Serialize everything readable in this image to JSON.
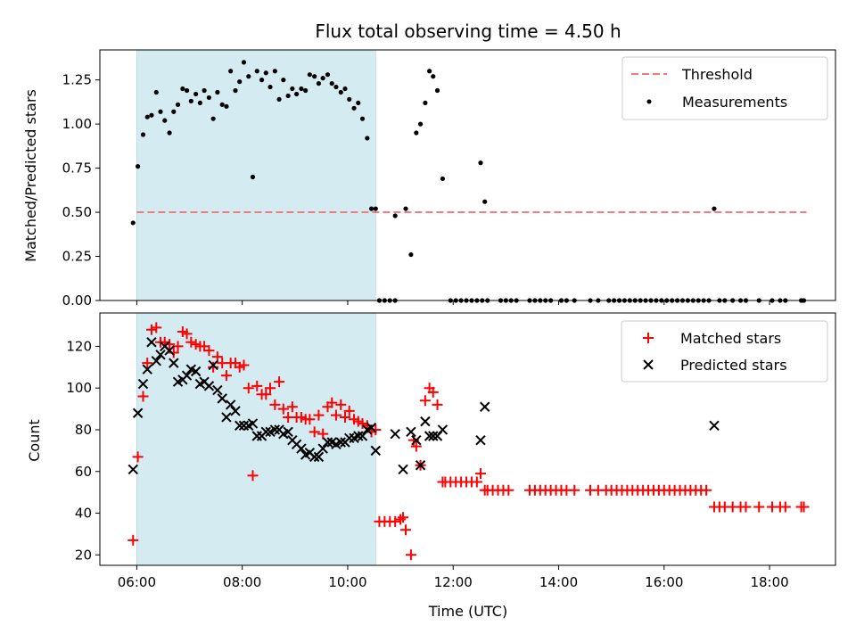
{
  "chart_data": [
    {
      "type": "scatter",
      "title": "Flux total observing time = 4.50 h",
      "xlabel": "",
      "ylabel": "Matched/Predicted stars",
      "ylim": [
        0.0,
        1.42
      ],
      "yticks": [
        "0.00",
        "0.25",
        "0.50",
        "0.75",
        "1.00",
        "1.25"
      ],
      "xlim_hours": [
        5.3,
        19.25
      ],
      "shaded_span_hours": [
        6.0,
        10.53
      ],
      "shade_color": "#d3ebf1",
      "legend_position": "upper right",
      "threshold": {
        "name": "Threshold",
        "y": 0.5,
        "x_range_hours": [
          6.0,
          18.7
        ],
        "color": "#f47a7a"
      },
      "series": [
        {
          "name": "Measurements",
          "color": "#000000",
          "marker": "dot",
          "x_hours": [
            5.93,
            6.02,
            6.12,
            6.2,
            6.28,
            6.37,
            6.45,
            6.53,
            6.62,
            6.7,
            6.78,
            6.87,
            6.95,
            7.03,
            7.12,
            7.2,
            7.28,
            7.37,
            7.45,
            7.53,
            7.62,
            7.7,
            7.78,
            7.87,
            7.95,
            8.03,
            8.12,
            8.2,
            8.28,
            8.37,
            8.45,
            8.53,
            8.62,
            8.7,
            8.78,
            8.87,
            8.95,
            9.03,
            9.12,
            9.2,
            9.28,
            9.37,
            9.45,
            9.53,
            9.62,
            9.7,
            9.78,
            9.87,
            9.95,
            10.03,
            10.12,
            10.2,
            10.28,
            10.37,
            10.45,
            10.53,
            10.9,
            11.1,
            11.2,
            11.3,
            11.38,
            11.47,
            11.55,
            11.62,
            11.7,
            11.8,
            12.52,
            12.6,
            16.95
          ],
          "y": [
            0.44,
            0.76,
            0.94,
            1.04,
            1.05,
            1.18,
            1.07,
            1.02,
            0.95,
            1.07,
            1.11,
            1.2,
            1.19,
            1.13,
            1.17,
            1.12,
            1.19,
            1.15,
            1.03,
            1.18,
            1.11,
            1.1,
            1.3,
            1.19,
            1.24,
            1.35,
            1.27,
            0.7,
            1.3,
            1.25,
            1.29,
            1.21,
            1.3,
            1.14,
            1.25,
            1.16,
            1.2,
            1.17,
            1.2,
            1.19,
            1.28,
            1.27,
            1.23,
            1.26,
            1.28,
            1.23,
            1.21,
            1.18,
            1.2,
            1.14,
            1.09,
            1.12,
            1.03,
            0.92,
            0.52,
            0.52,
            0.48,
            0.52,
            0.26,
            0.95,
            1.0,
            1.12,
            1.3,
            1.27,
            1.19,
            0.69,
            0.78,
            0.56,
            0.52
          ],
          "zeros_x_hours": [
            10.6,
            10.7,
            10.8,
            10.9,
            11.95,
            12.05,
            12.15,
            12.25,
            12.35,
            12.45,
            12.55,
            12.65,
            12.9,
            13.0,
            13.1,
            13.2,
            13.45,
            13.55,
            13.65,
            13.75,
            13.85,
            14.05,
            14.15,
            14.3,
            14.6,
            14.75,
            14.95,
            15.05,
            15.15,
            15.25,
            15.35,
            15.45,
            15.55,
            15.65,
            15.75,
            15.85,
            15.95,
            16.05,
            16.15,
            16.25,
            16.35,
            16.45,
            16.55,
            16.65,
            16.75,
            16.85,
            17.05,
            17.15,
            17.3,
            17.45,
            17.55,
            17.8,
            18.05,
            18.2,
            18.3,
            18.6,
            18.65
          ]
        }
      ]
    },
    {
      "type": "scatter",
      "title": "",
      "xlabel": "Time (UTC)",
      "ylabel": "Count",
      "ylim": [
        15,
        136
      ],
      "yticks": [
        20,
        40,
        60,
        80,
        100,
        120
      ],
      "xlim_hours": [
        5.3,
        19.25
      ],
      "xticks": [
        {
          "label": "06:00",
          "hours": 6
        },
        {
          "label": "08:00",
          "hours": 8
        },
        {
          "label": "10:00",
          "hours": 10
        },
        {
          "label": "12:00",
          "hours": 12
        },
        {
          "label": "14:00",
          "hours": 14
        },
        {
          "label": "16:00",
          "hours": 16
        },
        {
          "label": "18:00",
          "hours": 18
        }
      ],
      "shaded_span_hours": [
        6.0,
        10.53
      ],
      "legend_position": "upper right",
      "series": [
        {
          "name": "Matched stars",
          "color": "#ff0000",
          "marker": "plus",
          "x_hours": [
            5.93,
            6.02,
            6.12,
            6.2,
            6.28,
            6.37,
            6.45,
            6.53,
            6.62,
            6.7,
            6.78,
            6.87,
            6.95,
            7.03,
            7.12,
            7.2,
            7.28,
            7.37,
            7.45,
            7.53,
            7.62,
            7.7,
            7.78,
            7.87,
            7.95,
            8.03,
            8.12,
            8.2,
            8.28,
            8.37,
            8.45,
            8.53,
            8.62,
            8.7,
            8.78,
            8.87,
            8.95,
            9.03,
            9.12,
            9.2,
            9.28,
            9.37,
            9.45,
            9.53,
            9.62,
            9.7,
            9.78,
            9.87,
            9.95,
            10.03,
            10.12,
            10.2,
            10.28,
            10.37,
            10.45,
            10.53,
            10.6,
            10.7,
            10.8,
            10.9,
            11.0,
            11.05,
            11.1,
            11.2,
            11.25,
            11.3,
            11.38,
            11.47,
            11.55,
            11.62,
            11.7,
            11.8,
            11.85,
            11.95,
            12.05,
            12.15,
            12.25,
            12.35,
            12.45,
            12.52,
            12.6,
            12.65,
            12.75,
            12.85,
            12.95,
            13.05,
            13.45,
            13.55,
            13.65,
            13.75,
            13.85,
            13.95,
            14.05,
            14.15,
            14.3,
            14.6,
            14.75,
            14.9,
            15.0,
            15.1,
            15.2,
            15.3,
            15.4,
            15.5,
            15.6,
            15.7,
            15.8,
            15.9,
            16.0,
            16.1,
            16.2,
            16.3,
            16.4,
            16.5,
            16.6,
            16.7,
            16.8,
            16.95,
            17.05,
            17.15,
            17.3,
            17.45,
            17.55,
            17.8,
            18.05,
            18.2,
            18.3,
            18.6,
            18.65
          ],
          "y": [
            27,
            67,
            96,
            112,
            128,
            129,
            122,
            122,
            121,
            117,
            120,
            127,
            126,
            122,
            121,
            120,
            120,
            118,
            110,
            115,
            112,
            106,
            112,
            112,
            110,
            111,
            100,
            58,
            101,
            97,
            97,
            100,
            92,
            103,
            90,
            86,
            91,
            86,
            86,
            85,
            85,
            79,
            87,
            78,
            91,
            93,
            87,
            92,
            86,
            89,
            85,
            84,
            83,
            82,
            79,
            80,
            36,
            36,
            36,
            36,
            37,
            38,
            32,
            20,
            75,
            72,
            63,
            94,
            100,
            98,
            92,
            55,
            55,
            55,
            55,
            55,
            55,
            55,
            55,
            59,
            51,
            51,
            51,
            51,
            51,
            51,
            51,
            51,
            51,
            51,
            51,
            51,
            51,
            51,
            51,
            51,
            51,
            51,
            51,
            51,
            51,
            51,
            51,
            51,
            51,
            51,
            51,
            51,
            51,
            51,
            51,
            51,
            51,
            51,
            51,
            51,
            51,
            43,
            43,
            43,
            43,
            43,
            43,
            43,
            43,
            43,
            43,
            43,
            43
          ]
        },
        {
          "name": "Predicted stars",
          "color": "#000000",
          "marker": "x",
          "x_hours": [
            5.93,
            6.02,
            6.12,
            6.2,
            6.28,
            6.37,
            6.45,
            6.53,
            6.62,
            6.7,
            6.78,
            6.87,
            6.95,
            7.03,
            7.12,
            7.2,
            7.28,
            7.37,
            7.45,
            7.53,
            7.62,
            7.7,
            7.78,
            7.87,
            7.95,
            8.03,
            8.12,
            8.2,
            8.28,
            8.37,
            8.45,
            8.53,
            8.62,
            8.7,
            8.78,
            8.87,
            8.95,
            9.03,
            9.12,
            9.2,
            9.28,
            9.37,
            9.45,
            9.53,
            9.62,
            9.7,
            9.78,
            9.87,
            9.95,
            10.03,
            10.12,
            10.2,
            10.28,
            10.37,
            10.45,
            10.53,
            10.9,
            11.05,
            11.2,
            11.3,
            11.38,
            11.47,
            11.55,
            11.62,
            11.7,
            11.8,
            12.52,
            12.6,
            16.95
          ],
          "y": [
            61,
            88,
            102,
            109,
            122,
            113,
            116,
            120,
            118,
            112,
            103,
            104,
            106,
            109,
            108,
            102,
            103,
            101,
            111,
            99,
            95,
            86,
            92,
            89,
            82,
            82,
            82,
            83,
            77,
            77,
            79,
            79,
            80,
            80,
            78,
            79,
            75,
            73,
            71,
            68,
            69,
            67,
            67,
            71,
            74,
            74,
            73,
            74,
            74,
            76,
            76,
            77,
            77,
            80,
            81,
            70,
            78,
            61,
            79,
            75,
            63,
            84,
            77,
            77,
            77,
            80,
            75,
            91,
            82
          ]
        }
      ]
    }
  ]
}
